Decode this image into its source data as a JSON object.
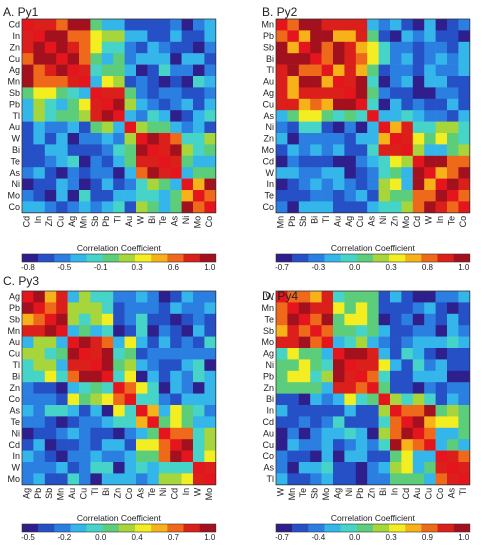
{
  "figure": {
    "background": "#ffffff"
  },
  "colormap": [
    "#2e1f8c",
    "#2550c6",
    "#2b7fe0",
    "#35b6ea",
    "#46d3c8",
    "#5ccd7a",
    "#a6d53c",
    "#f2ee22",
    "#f7b21a",
    "#ee6a1a",
    "#db1f1a",
    "#a3111e"
  ],
  "diag_color": "#e4151c",
  "chart_data": [
    {
      "type": "heatmap",
      "title": "A. Py1",
      "labels": [
        "Cd",
        "In",
        "Zn",
        "Cu",
        "Ag",
        "Mn",
        "Sb",
        "Pb",
        "Tl",
        "Au",
        "W",
        "Bi",
        "Te",
        "As",
        "Ni",
        "Mo",
        "Co"
      ],
      "groups": [
        0,
        0,
        0,
        0,
        0,
        0,
        1,
        1,
        1,
        2,
        3,
        3,
        3,
        3,
        4,
        4,
        4
      ],
      "xlabel": "Correlation Coefficient",
      "colorbar_ticks": [
        "-0.8",
        "-0.5",
        "-0.1",
        "0.3",
        "0.6",
        "1.0"
      ],
      "vmin": -0.8,
      "vmax": 1.0
    },
    {
      "type": "heatmap",
      "title": "B. Py2",
      "labels": [
        "Mn",
        "Pb",
        "Sb",
        "Bi",
        "Tl",
        "Au",
        "Ag",
        "Cu",
        "As",
        "Ni",
        "Zn",
        "Mo",
        "Cd",
        "W",
        "In",
        "Te",
        "Co"
      ],
      "groups": [
        0,
        0,
        0,
        0,
        0,
        0,
        0,
        0,
        1,
        2,
        2,
        2,
        3,
        3,
        3,
        3,
        3
      ],
      "xlabel": "Correlation Coefficient",
      "colorbar_ticks": [
        "-0.7",
        "-0.3",
        "0.0",
        "0.3",
        "0.8",
        "1.0"
      ],
      "vmin": -0.7,
      "vmax": 1.0
    },
    {
      "type": "heatmap",
      "title": "C. Py3",
      "labels": [
        "Ag",
        "Pb",
        "Sb",
        "Mn",
        "Au",
        "Cu",
        "Tl",
        "Bi",
        "Zn",
        "Co",
        "As",
        "Te",
        "Ni",
        "Cd",
        "In",
        "W",
        "Mo"
      ],
      "groups": [
        0,
        0,
        0,
        0,
        1,
        1,
        1,
        1,
        2,
        2,
        3,
        3,
        4,
        4,
        4,
        5,
        5
      ],
      "xlabel": "Correlation Coefficient",
      "colorbar_ticks": [
        "-0.5",
        "-0.2",
        "0.0",
        "0.4",
        "0.7",
        "1.0"
      ],
      "vmin": -0.5,
      "vmax": 1.0
    },
    {
      "type": "heatmap",
      "title": "D. Py4",
      "labels": [
        "W",
        "Mn",
        "Te",
        "Sb",
        "Mo",
        "Ag",
        "Ni",
        "Pb",
        "Zn",
        "Bi",
        "In",
        "Cd",
        "Au",
        "Cu",
        "Co",
        "As",
        "Tl"
      ],
      "groups": [
        0,
        0,
        0,
        0,
        0,
        1,
        1,
        1,
        1,
        2,
        3,
        3,
        3,
        3,
        4,
        4,
        4
      ],
      "xlabel": "Correlation Coefficient",
      "colorbar_ticks": [
        "-0.7",
        "-0.4",
        "0.0",
        "0.3",
        "0.9",
        "1.0"
      ],
      "vmin": -0.7,
      "vmax": 1.0
    }
  ]
}
